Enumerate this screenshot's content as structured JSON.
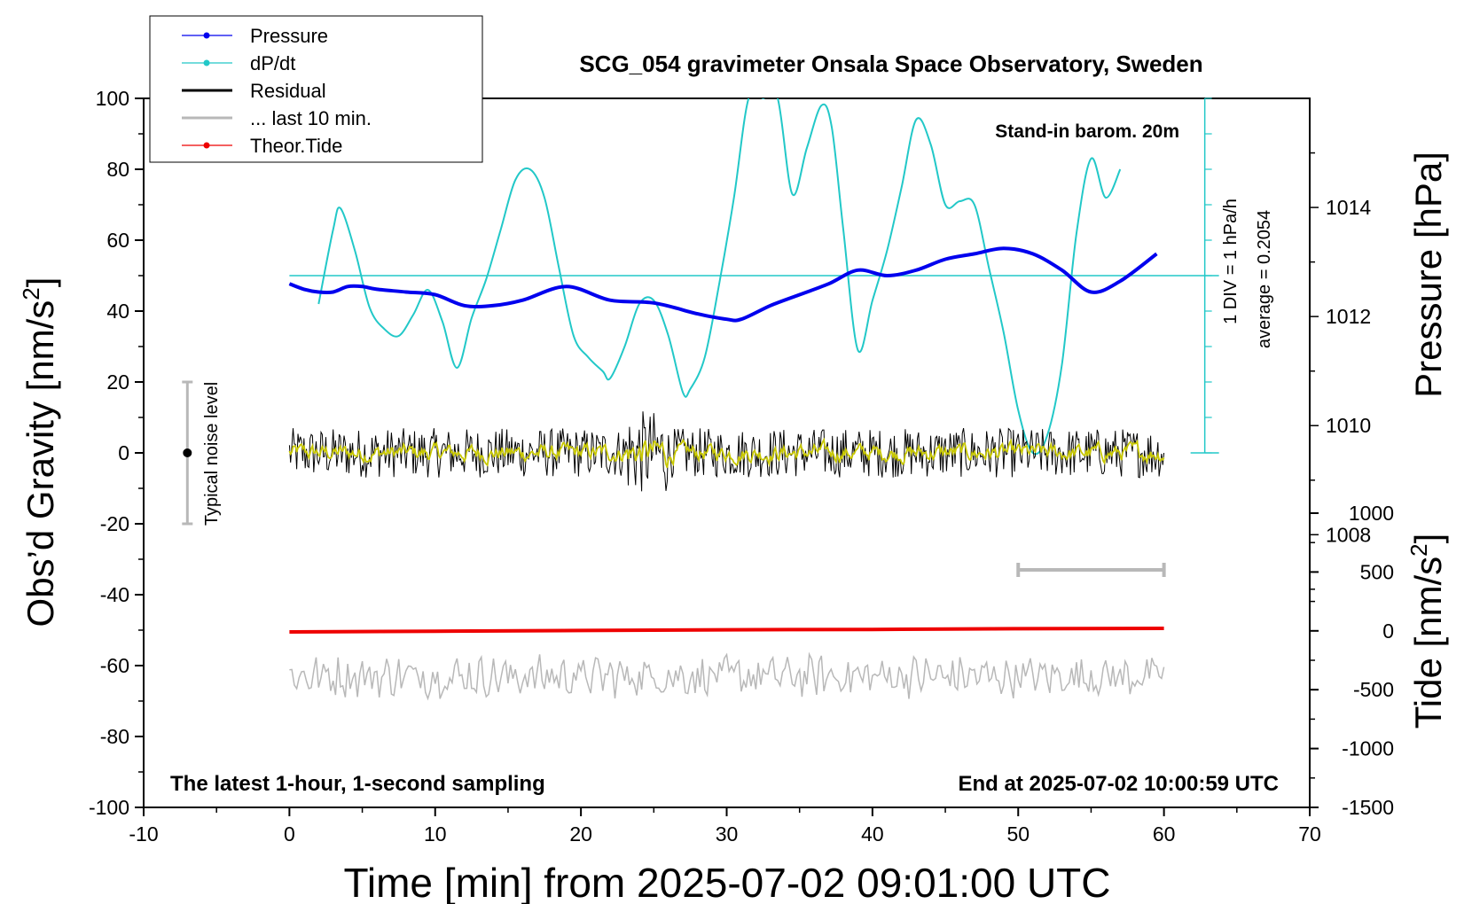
{
  "chart_data": {
    "type": "line",
    "title": "SCG_054 gravimeter Onsala Space Observatory, Sweden",
    "xlabel": "Time [min] from 2025-07-02 09:01:00 UTC",
    "xlim": [
      -10,
      70
    ],
    "xticks": [
      "-10",
      "0",
      "10",
      "20",
      "30",
      "40",
      "50",
      "60",
      "70"
    ],
    "left_axis": {
      "label": "Obs’d Gravity [nm/s",
      "label_sup": "2",
      "label_close": "]",
      "ylim": [
        -100,
        100
      ],
      "ticks": [
        "-100",
        "-80",
        "-60",
        "-40",
        "-20",
        "0",
        "20",
        "40",
        "60",
        "80",
        "100"
      ]
    },
    "pressure_axis": {
      "label": "Pressure [hPa]",
      "ticks": [
        "1008",
        "1010",
        "1012",
        "1014"
      ],
      "range_hpa": [
        1003,
        1016
      ]
    },
    "tide_axis": {
      "label": "Tide [nm/s",
      "label_sup": "2",
      "label_close": "]",
      "ticks": [
        "-1500",
        "-1000",
        "-500",
        "0",
        "500",
        "1000"
      ],
      "range": [
        -1500,
        1000
      ]
    },
    "dpdt_scale": {
      "div_label": "1 DIV = 1 hPa/h",
      "average_label": "average = 0.2054",
      "average_level_gravity": 50
    },
    "legend": [
      {
        "label": "Pressure",
        "color": "#0000ee",
        "marker": "dot"
      },
      {
        "label": "dP/dt",
        "color": "#22c8c8",
        "marker": "dot"
      },
      {
        "label": "Residual",
        "color": "#000000",
        "marker": "line"
      },
      {
        "label": "... last 10 min.",
        "color": "#b8b8b8",
        "marker": "line"
      },
      {
        "label": "Theor.Tide",
        "color": "#ee0000",
        "marker": "dot"
      }
    ],
    "annotations": {
      "barometer": "Stand-in barom. 20m",
      "sampling": "The latest 1-hour, 1-second sampling",
      "end_time": "End at 2025-07-02 10:00:59 UTC",
      "noise_label": "Typical noise level"
    },
    "noise_bar": {
      "x": -7,
      "y_low": -20,
      "y_high": 20,
      "y_mid": 0
    },
    "gray_scale_bar": {
      "x_start": 50,
      "x_end": 60,
      "y_gravity": -33
    },
    "series": [
      {
        "name": "Pressure",
        "color": "#0000ee",
        "x": [
          0,
          1,
          2,
          3,
          4,
          5,
          6,
          8,
          10,
          12,
          14,
          16,
          19,
          22,
          25,
          28,
          30,
          31,
          33,
          35,
          37,
          39,
          41,
          43,
          45,
          47,
          49,
          51,
          53,
          55,
          57,
          59.5
        ],
        "y": [
          1012.6,
          1012.5,
          1012.45,
          1012.45,
          1012.55,
          1012.55,
          1012.5,
          1012.45,
          1012.4,
          1012.2,
          1012.2,
          1012.3,
          1012.55,
          1012.3,
          1012.25,
          1012.05,
          1011.95,
          1011.95,
          1012.2,
          1012.4,
          1012.6,
          1012.85,
          1012.75,
          1012.85,
          1013.05,
          1013.15,
          1013.25,
          1013.15,
          1012.85,
          1012.45,
          1012.65,
          1013.15
        ]
      },
      {
        "name": "dP/dt",
        "color": "#22c8c8",
        "x": [
          2,
          3,
          3.5,
          4.5,
          5.5,
          6.5,
          7.5,
          8.5,
          9.5,
          10.5,
          11.5,
          12.5,
          13.5,
          14.5,
          15.5,
          16.5,
          17.5,
          18.5,
          19.5,
          20.5,
          21.5,
          22,
          23,
          24,
          25,
          26,
          27,
          27.5,
          28.5,
          29.5,
          30.5,
          31.5,
          32.5,
          33.5,
          34.5,
          35.5,
          36.5,
          37.2,
          38,
          39,
          40,
          41,
          42,
          43,
          44,
          45,
          46,
          47,
          48,
          49,
          50,
          51,
          52,
          53,
          54,
          55,
          56,
          57
        ],
        "y": [
          42,
          63,
          69,
          57,
          41,
          35,
          33,
          39,
          46,
          37,
          24,
          38,
          49,
          63,
          77,
          80,
          72,
          52,
          33,
          27,
          23,
          21,
          30,
          42,
          43,
          33,
          17,
          18,
          27,
          48,
          72,
          100,
          100,
          100,
          73,
          86,
          98,
          92,
          63,
          29,
          43,
          57,
          75,
          94,
          87,
          70,
          71,
          70,
          52,
          34,
          12,
          0,
          5,
          25,
          62,
          83,
          72,
          80
        ]
      },
      {
        "name": "Residual",
        "color": "#000000",
        "noise": true,
        "x_range": [
          0,
          60
        ],
        "amplitude": 7
      },
      {
        "name": "... last 10 min.",
        "color": "#b8b8b8",
        "noise": true,
        "x_range": [
          0,
          60
        ],
        "center": -63,
        "amplitude": 5
      },
      {
        "name": "Theor.Tide",
        "color": "#ee0000",
        "x": [
          0,
          10,
          20,
          30,
          40,
          50,
          60
        ],
        "y": [
          -50.5,
          -50.3,
          -50.1,
          -49.9,
          -49.8,
          -49.6,
          -49.5
        ]
      }
    ]
  }
}
